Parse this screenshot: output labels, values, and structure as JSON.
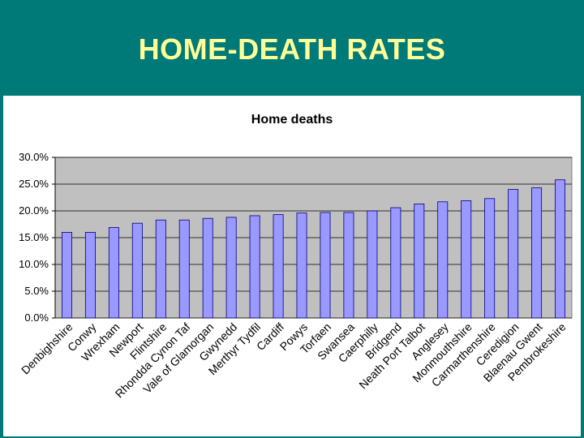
{
  "slide": {
    "title": "HOME-DEATH RATES"
  },
  "colors": {
    "background": "#007a78",
    "title": "#ffff99",
    "plot_area": "#c0c0c0",
    "bar_fill": "#9999ff",
    "bar_stroke": "#000080"
  },
  "chart_data": {
    "type": "bar",
    "title": "Home deaths",
    "xlabel": "",
    "ylabel": "",
    "ylim": [
      0,
      30
    ],
    "y_ticks": [
      "0.0%",
      "5.0%",
      "10.0%",
      "15.0%",
      "20.0%",
      "25.0%",
      "30.0%"
    ],
    "y_tick_values": [
      0,
      5,
      10,
      15,
      20,
      25,
      30
    ],
    "grid": true,
    "legend": "none",
    "categories": [
      "Denbighshire",
      "Conwy",
      "Wrexham",
      "Newport",
      "Flintshire",
      "Rhondda Cynon Taf",
      "Vale of Glamorgan",
      "Gwynedd",
      "Merthyr Tydfil",
      "Cardiff",
      "Powys",
      "Torfaen",
      "Swansea",
      "Caerphilly",
      "Bridgend",
      "Neath Port Talbot",
      "Anglesey",
      "Monmouthshire",
      "Carmarthenshire",
      "Ceredigion",
      "Blaenau Gwent",
      "Pembrokeshire"
    ],
    "values": [
      16.0,
      16.0,
      16.9,
      17.7,
      18.3,
      18.3,
      18.6,
      18.8,
      19.1,
      19.3,
      19.6,
      19.7,
      19.7,
      20.0,
      20.6,
      21.3,
      21.7,
      21.9,
      22.3,
      24.0,
      24.3,
      25.8
    ]
  }
}
